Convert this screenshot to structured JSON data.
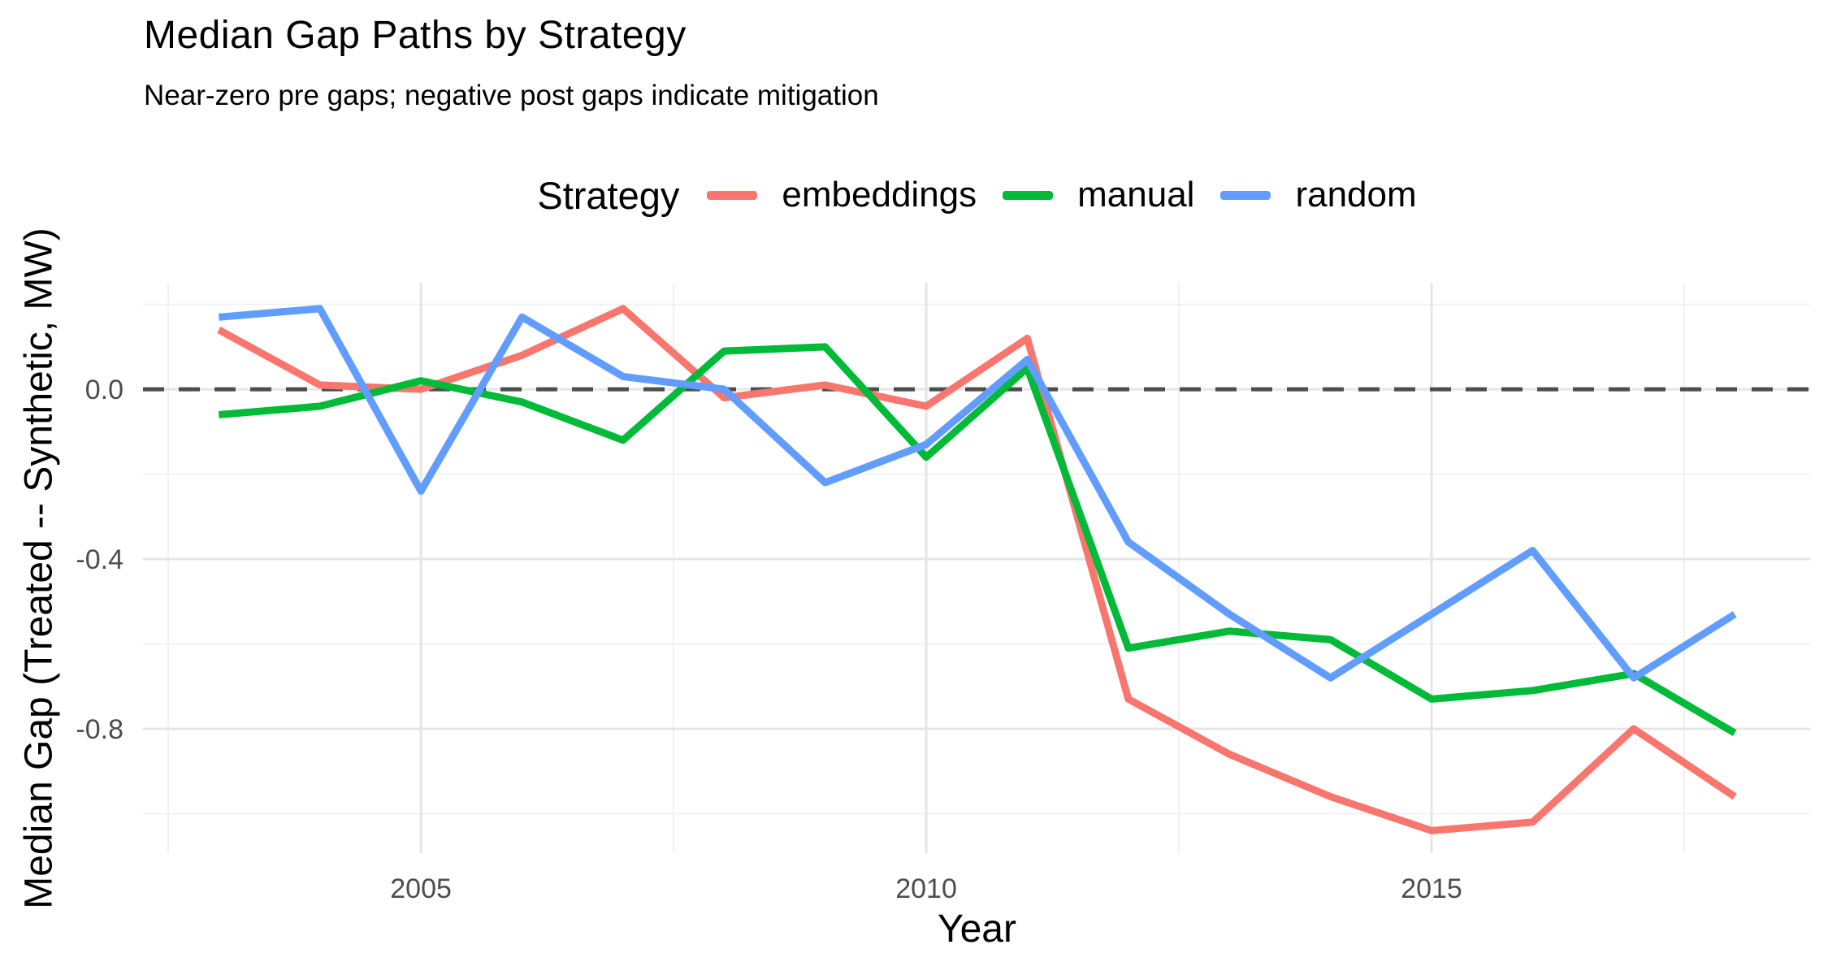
{
  "title": "Median Gap Paths by Strategy",
  "subtitle": "Near-zero pre gaps; negative post gaps indicate mitigation",
  "legend": {
    "title": "Strategy",
    "items": [
      {
        "label": "embeddings"
      },
      {
        "label": "manual"
      },
      {
        "label": "random"
      }
    ]
  },
  "axes": {
    "x": {
      "title": "Year",
      "ticks": [
        {
          "value": 2005,
          "label": "2005"
        },
        {
          "value": 2010,
          "label": "2010"
        },
        {
          "value": 2015,
          "label": "2015"
        }
      ],
      "minor": [
        2002.5,
        2007.5,
        2012.5,
        2017.5
      ]
    },
    "y": {
      "title": "Median Gap (Treated -- Synthetic, MW)",
      "ticks": [
        {
          "value": 0.0,
          "label": "0.0"
        },
        {
          "value": -0.4,
          "label": "-0.4"
        },
        {
          "value": -0.8,
          "label": "-0.8"
        }
      ],
      "minor": [
        0.2,
        -0.2,
        -0.6,
        -1.0
      ]
    }
  },
  "reference_line": {
    "y": 0,
    "style": "dashed"
  },
  "colors": {
    "background": "#ffffff",
    "grid_major": "#e5e5e5",
    "grid_minor": "#f1f1f1",
    "reference": "#4d4d4d",
    "tick_label": "#4d4d4d",
    "text": "#000000",
    "embeddings": "#F8766D",
    "manual": "#00BA38",
    "random": "#619CFF"
  },
  "chart_data": {
    "type": "line",
    "title": "Median Gap Paths by Strategy",
    "subtitle": "Near-zero pre gaps; negative post gaps indicate mitigation",
    "xlabel": "Year",
    "ylabel": "Median Gap (Treated -- Synthetic, MW)",
    "legend_title": "Strategy",
    "legend_position": "top",
    "grid": true,
    "xlim": [
      2002.25,
      2018.75
    ],
    "ylim": [
      -1.093,
      0.251
    ],
    "x": [
      2003,
      2004,
      2005,
      2006,
      2007,
      2008,
      2009,
      2010,
      2011,
      2012,
      2013,
      2014,
      2015,
      2016,
      2017,
      2018
    ],
    "reference_y": 0,
    "series": [
      {
        "name": "embeddings",
        "color": "#F8766D",
        "values": [
          0.14,
          0.01,
          0.0,
          0.08,
          0.19,
          -0.02,
          0.01,
          -0.04,
          0.12,
          -0.73,
          -0.86,
          -0.96,
          -1.04,
          -1.02,
          -0.8,
          -0.96
        ]
      },
      {
        "name": "manual",
        "color": "#00BA38",
        "values": [
          -0.06,
          -0.04,
          0.02,
          -0.03,
          -0.12,
          0.09,
          0.1,
          -0.16,
          0.05,
          -0.61,
          -0.57,
          -0.59,
          -0.73,
          -0.71,
          -0.67,
          -0.81
        ]
      },
      {
        "name": "random",
        "color": "#619CFF",
        "values": [
          0.17,
          0.19,
          -0.24,
          0.17,
          0.03,
          0.0,
          -0.22,
          -0.13,
          0.07,
          -0.36,
          -0.53,
          -0.68,
          -0.53,
          -0.38,
          -0.68,
          -0.53
        ]
      }
    ]
  }
}
